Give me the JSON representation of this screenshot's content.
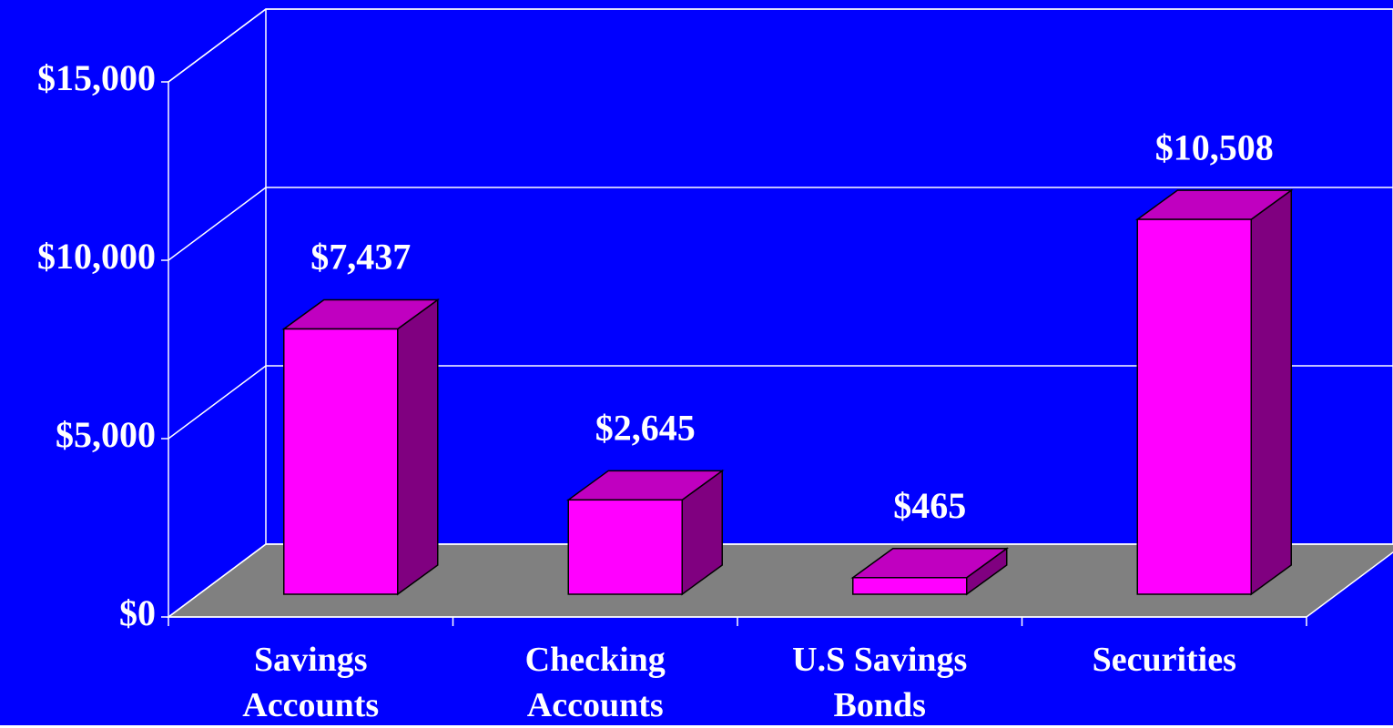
{
  "chart_data": {
    "type": "bar3d",
    "categories": [
      "Savings Accounts",
      "Checking Accounts",
      "U.S Savings Bonds",
      "Securities"
    ],
    "values": [
      7437,
      2645,
      465,
      10508
    ],
    "value_labels": [
      "$7,437",
      "$2,645",
      "$465",
      "$10,508"
    ],
    "ylim": [
      0,
      15000
    ],
    "yticks": [
      {
        "value": 0,
        "label": "$0"
      },
      {
        "value": 5000,
        "label": "$5,000"
      },
      {
        "value": 10000,
        "label": "$10,000"
      },
      {
        "value": 15000,
        "label": "$15,000"
      }
    ],
    "grid": true,
    "color": "#ff00ff",
    "top_color": "#c000c0",
    "side_color": "#800080",
    "background": "#0000ff",
    "floor_color": "#808080"
  }
}
